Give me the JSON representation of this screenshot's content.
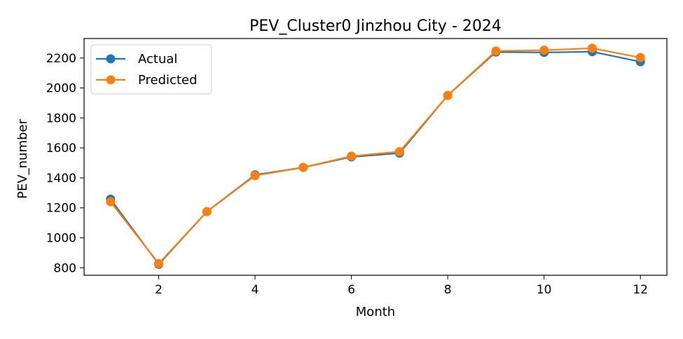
{
  "chart_data": {
    "type": "line",
    "title": "PEV_Cluster0 Jinzhou City - 2024",
    "xlabel": "Month",
    "ylabel": "PEV_number",
    "xlim": [
      0.45,
      12.55
    ],
    "ylim": [
      750,
      2330
    ],
    "xticks": [
      2,
      4,
      6,
      8,
      10,
      12
    ],
    "yticks": [
      800,
      1000,
      1200,
      1400,
      1600,
      1800,
      2000,
      2200
    ],
    "grid": false,
    "legend_position": "upper left",
    "x": [
      1,
      2,
      3,
      4,
      5,
      6,
      7,
      8,
      9,
      10,
      11,
      12
    ],
    "series": [
      {
        "name": "Actual",
        "color": "#1f77b4",
        "marker": "circle",
        "values": [
          1258,
          823,
          1175,
          1420,
          1470,
          1540,
          1565,
          1950,
          2240,
          2237,
          2242,
          2175
        ]
      },
      {
        "name": "Predicted",
        "color": "#ff7f0e",
        "marker": "circle",
        "values": [
          1240,
          828,
          1175,
          1415,
          1470,
          1545,
          1575,
          1950,
          2247,
          2252,
          2265,
          2203
        ]
      }
    ]
  }
}
